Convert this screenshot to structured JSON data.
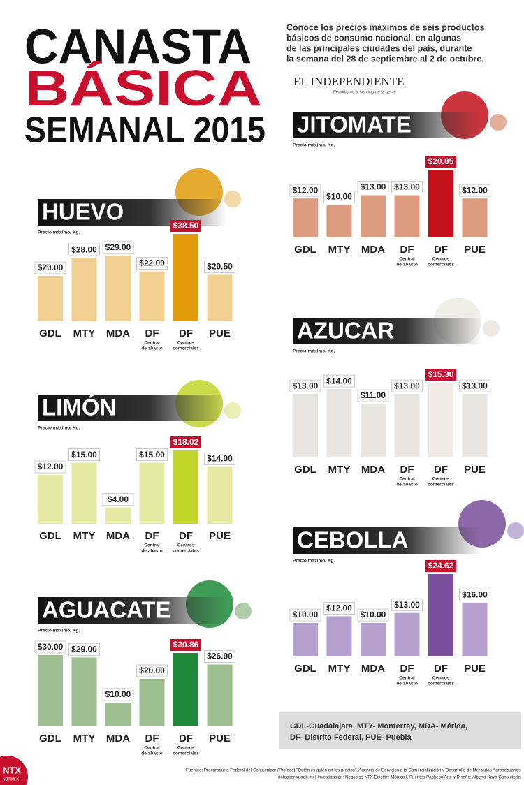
{
  "header": {
    "title_lines": [
      "CANASTA",
      "BÁSICA",
      "SEMANAL 2015"
    ],
    "intro_lines": [
      "Conoce los precios máximos de seis productos",
      "básicos de consumo nacional, en algunas",
      "de las principales ciudades del país, durante",
      "la semana del 28 de septiembre al 2 de octubre."
    ],
    "logo": "EL INDEPENDIENTE",
    "logo_tagline": "Periodismo al servicio de la gente"
  },
  "chart_data": [
    {
      "type": "bar",
      "title": "HUEVO",
      "subtitle": "Precio máximo/ Kg.",
      "categories": [
        "GDL",
        "MTY",
        "MDA",
        "DF",
        "DF",
        "PUE"
      ],
      "category_notes": [
        null,
        null,
        null,
        [
          "Central",
          "de abasto"
        ],
        [
          "Centros",
          "comerciales"
        ],
        null
      ],
      "values": [
        20.0,
        28.0,
        29.0,
        22.0,
        38.5,
        20.5
      ],
      "value_labels": [
        "$20.00",
        "$28.00",
        "$29.00",
        "$22.00",
        "$38.50",
        "$20.50"
      ],
      "color": "#f0cf90",
      "colors": [
        "#f0cf90",
        "#f0cf90",
        "#f0cf90",
        "#f0cf90",
        "#e09a0a",
        "#f0cf90"
      ]
    },
    {
      "type": "bar",
      "title": "LIMÓN",
      "subtitle": "Precio máximo/ Kg.",
      "categories": [
        "GDL",
        "MTY",
        "MDA",
        "DF",
        "DF",
        "PUE"
      ],
      "category_notes": [
        null,
        null,
        null,
        [
          "Central",
          "de abasto"
        ],
        [
          "Centros",
          "comerciales"
        ],
        null
      ],
      "values": [
        12.0,
        15.0,
        4.0,
        15.0,
        18.02,
        14.0
      ],
      "value_labels": [
        "$12.00",
        "$15.00",
        "$4.00",
        "$15.00",
        "$18.02",
        "$14.00"
      ],
      "color": "#e6e9a4",
      "colors": [
        "#e6e9a4",
        "#e6e9a4",
        "#e6e9a4",
        "#e6e9a4",
        "#c2d52a",
        "#e6e9a4"
      ]
    },
    {
      "type": "bar",
      "title": "AGUACATE",
      "subtitle": "Precio máximo/ Kg.",
      "categories": [
        "GDL",
        "MTY",
        "MDA",
        "DF",
        "DF",
        "PUE"
      ],
      "category_notes": [
        null,
        null,
        null,
        [
          "Central",
          "de abasto"
        ],
        [
          "Centros",
          "comerciales"
        ],
        null
      ],
      "values": [
        30.0,
        29.0,
        10.0,
        20.0,
        30.86,
        26.0
      ],
      "value_labels": [
        "$30.00",
        "$29.00",
        "$10.00",
        "$20.00",
        "$30.86",
        "$26.00"
      ],
      "color": "#9dbf92",
      "colors": [
        "#9dbf92",
        "#9dbf92",
        "#9dbf92",
        "#9dbf92",
        "#1f8a3a",
        "#9dbf92"
      ]
    },
    {
      "type": "bar",
      "title": "JITOMATE",
      "subtitle": "Precio máximo/ Kg.",
      "categories": [
        "GDL",
        "MTY",
        "MDA",
        "DF",
        "DF",
        "PUE"
      ],
      "category_notes": [
        null,
        null,
        null,
        [
          "Central",
          "de abasto"
        ],
        [
          "Centros",
          "comerciales"
        ],
        null
      ],
      "values": [
        12.0,
        10.0,
        13.0,
        13.0,
        20.85,
        12.0
      ],
      "value_labels": [
        "$12.00",
        "$10.00",
        "$13.00",
        "$13.00",
        "$20.85",
        "$12.00"
      ],
      "color": "#dc9a7e",
      "colors": [
        "#dc9a7e",
        "#dc9a7e",
        "#dc9a7e",
        "#dc9a7e",
        "#c3121c",
        "#dc9a7e"
      ]
    },
    {
      "type": "bar",
      "title": "AZUCAR",
      "subtitle": "Precio máximo/ Kg.",
      "categories": [
        "GDL",
        "MTY",
        "MDA",
        "DF",
        "DF",
        "PUE"
      ],
      "category_notes": [
        null,
        null,
        null,
        [
          "Central",
          "de abasto"
        ],
        [
          "Centros",
          "comerciales"
        ],
        null
      ],
      "values": [
        13.0,
        14.0,
        11.0,
        13.0,
        15.3,
        13.0
      ],
      "value_labels": [
        "$13.00",
        "$14.00",
        "$11.00",
        "$13.00",
        "$15.30",
        "$13.00"
      ],
      "color": "#e8e4df",
      "colors": [
        "#e8e4df",
        "#e8e4df",
        "#e8e4df",
        "#e8e4df",
        "#efebe4",
        "#e8e4df"
      ]
    },
    {
      "type": "bar",
      "title": "CEBOLLA",
      "subtitle": "Precio máximo/ Kg.",
      "categories": [
        "GDL",
        "MTY",
        "MDA",
        "DF",
        "DF",
        "PUE"
      ],
      "category_notes": [
        null,
        null,
        null,
        [
          "Central",
          "de abasto"
        ],
        [
          "Centros",
          "comerciales"
        ],
        null
      ],
      "values": [
        10.0,
        12.0,
        10.0,
        13.0,
        24.62,
        16.0
      ],
      "value_labels": [
        "$10.00",
        "$12.00",
        "$10.00",
        "$13.00",
        "$24.62",
        "$16.00"
      ],
      "color": "#b5a0cf",
      "colors": [
        "#b5a0cf",
        "#b5a0cf",
        "#b5a0cf",
        "#b5a0cf",
        "#7a4f9b",
        "#b5a0cf"
      ]
    }
  ],
  "legend_note": [
    "GDL-Guadalajara, MTY- Monterrey, MDA- Mérida,",
    "DF- Distrito Federal, PUE- Puebla"
  ],
  "footer": {
    "source_lines": [
      "Fuentes: Procuraduría Federal del Consumidor (Profeco) \"Quién es quién en los precios\", Agencia de Servicios a la Comercialización y Desarrollo de Mercados Agropecuarios",
      "(infoaserca.gob.mx)  Investigación: Negocios NTX  Edición: Mónica I. Fuentes Pacheco Arte y Diseño: Alberto Nava Consultoría"
    ],
    "brand": "NTX",
    "brand_sub": "NOTIMEX"
  }
}
